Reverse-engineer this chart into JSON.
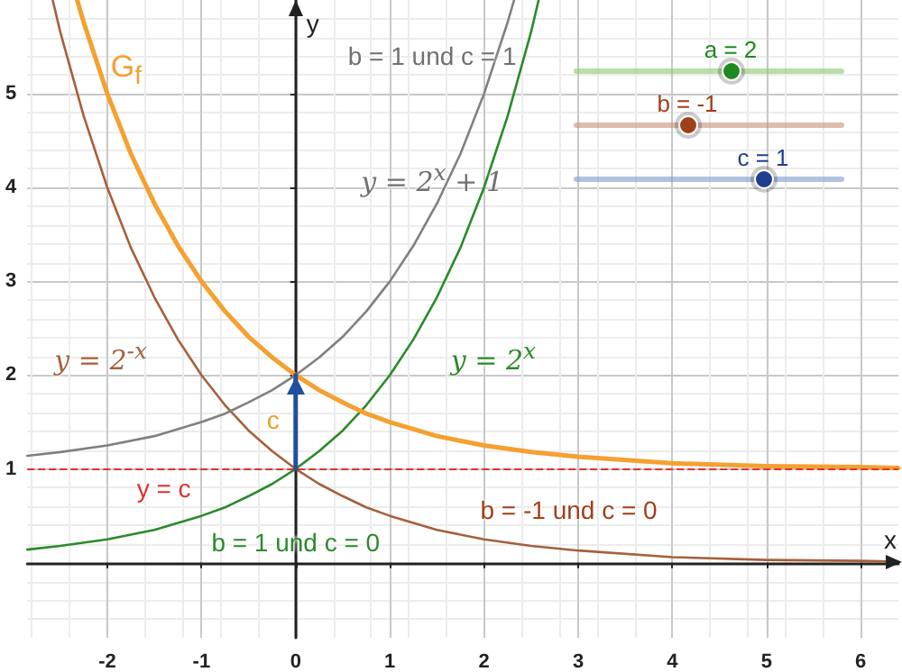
{
  "chart_data": {
    "type": "line",
    "xlabel": "x",
    "ylabel": "y",
    "xlim": [
      -2.85,
      6.4
    ],
    "ylim": [
      -0.8,
      6
    ],
    "xticks": [
      -2,
      -1,
      0,
      1,
      2,
      3,
      4,
      5,
      6
    ],
    "yticks": [
      1,
      2,
      3,
      4,
      5
    ],
    "grid": true,
    "marker": "none",
    "series": [
      {
        "color": "#f5a030",
        "x": [
          -2.32,
          -2.25,
          -2,
          -1.75,
          -1.5,
          -1.25,
          -1,
          -0.75,
          -0.5,
          -0.25,
          0,
          0.25,
          0.5,
          0.75,
          1,
          1.5,
          2,
          2.5,
          3,
          4,
          5,
          6,
          6.4
        ],
        "values": [
          6,
          5.76,
          5,
          4.36,
          3.83,
          3.38,
          3,
          2.68,
          2.41,
          2.19,
          2,
          1.84,
          1.71,
          1.59,
          1.5,
          1.35,
          1.25,
          1.18,
          1.13,
          1.06,
          1.03,
          1.02,
          1.01
        ]
      },
      {
        "color": "#a5603c",
        "x": [
          -2.58,
          -2.5,
          -2.25,
          -2,
          -1.75,
          -1.5,
          -1.25,
          -1,
          -0.75,
          -0.5,
          -0.25,
          0,
          0.25,
          0.5,
          0.75,
          1,
          1.5,
          2,
          2.5,
          3,
          4,
          5,
          6,
          6.4
        ],
        "values": [
          6,
          5.66,
          4.76,
          4,
          3.36,
          2.83,
          2.38,
          2,
          1.68,
          1.41,
          1.19,
          1,
          0.84,
          0.71,
          0.59,
          0.5,
          0.35,
          0.25,
          0.18,
          0.13,
          0.06,
          0.03,
          0.02,
          0.01
        ]
      },
      {
        "color": "#808080",
        "x": [
          -2.85,
          -2.5,
          -2,
          -1.5,
          -1,
          -0.75,
          -0.5,
          -0.25,
          0,
          0.25,
          0.5,
          0.75,
          1,
          1.25,
          1.5,
          1.75,
          2,
          2.25,
          2.32
        ],
        "values": [
          1.14,
          1.18,
          1.25,
          1.35,
          1.5,
          1.59,
          1.71,
          1.84,
          2,
          2.19,
          2.41,
          2.68,
          3,
          3.38,
          3.83,
          4.36,
          5,
          5.76,
          6
        ]
      },
      {
        "color": "#2a8a2a",
        "x": [
          -2.85,
          -2.5,
          -2,
          -1.5,
          -1,
          -0.75,
          -0.5,
          -0.25,
          0,
          0.25,
          0.5,
          0.75,
          1,
          1.25,
          1.5,
          1.75,
          2,
          2.25,
          2.5,
          2.58
        ],
        "values": [
          0.14,
          0.18,
          0.25,
          0.35,
          0.5,
          0.59,
          0.71,
          0.84,
          1,
          1.19,
          1.41,
          1.68,
          2,
          2.38,
          2.83,
          3.36,
          4,
          4.76,
          5.66,
          6
        ]
      },
      {
        "color": "#1f50a0",
        "x": [
          0,
          0
        ],
        "values": [
          1,
          2
        ]
      }
    ],
    "ref_lines": [
      {
        "axis": "y",
        "value": 1,
        "label": "y = c",
        "color": "#e03030",
        "line_style": "dashed"
      }
    ],
    "annotations": [
      "G$_{f}$",
      "b = 1 und c = 1",
      "y = 2$^{x}$ + 1",
      "y = 2$^{-x}$",
      "y = 2$^{x}$",
      "b = 1 und c = 0",
      "b = -1 und c = 0",
      "c",
      "a = 2",
      "b = -1",
      "c = 1"
    ]
  }
}
